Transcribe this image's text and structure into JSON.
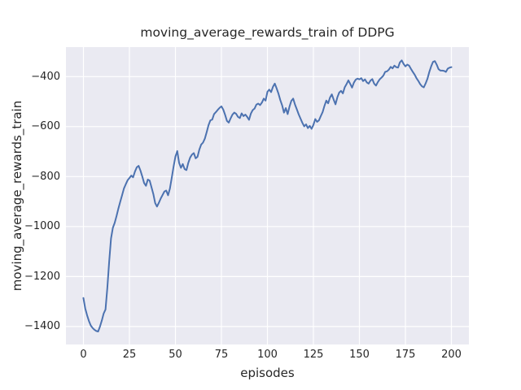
{
  "figure": {
    "title": "moving_average_rewards_train of DDPG",
    "xlabel": "episodes",
    "ylabel": "moving_average_rewards_train",
    "background_color": "#ffffff",
    "plot_background_color": "#eaeaf2",
    "grid_color": "#ffffff",
    "text_color": "#262626",
    "line_color": "#4c72b0"
  },
  "chart_data": {
    "type": "line",
    "title": "moving_average_rewards_train of DDPG",
    "xlabel": "episodes",
    "ylabel": "moving_average_rewards_train",
    "grid": true,
    "legend_position": "none",
    "x_ticks": [
      0,
      25,
      50,
      75,
      100,
      125,
      150,
      175,
      200
    ],
    "y_ticks": [
      -400,
      -600,
      -800,
      -1000,
      -1200,
      -1400
    ],
    "xlim": [
      -9.5,
      209.5
    ],
    "ylim": [
      -1472,
      -282
    ],
    "series": [
      {
        "name": "moving_average_rewards_train",
        "color": "#4c72b0",
        "x": [
          0,
          1,
          2,
          3,
          4,
          5,
          6,
          7,
          8,
          9,
          10,
          11,
          12,
          13,
          14,
          15,
          16,
          17,
          18,
          19,
          20,
          21,
          22,
          23,
          24,
          25,
          26,
          27,
          28,
          29,
          30,
          31,
          32,
          33,
          34,
          35,
          36,
          37,
          38,
          39,
          40,
          41,
          42,
          43,
          44,
          45,
          46,
          47,
          48,
          49,
          50,
          51,
          52,
          53,
          54,
          55,
          56,
          57,
          58,
          59,
          60,
          61,
          62,
          63,
          64,
          65,
          66,
          67,
          68,
          69,
          70,
          71,
          72,
          73,
          74,
          75,
          76,
          77,
          78,
          79,
          80,
          81,
          82,
          83,
          84,
          85,
          86,
          87,
          88,
          89,
          90,
          91,
          92,
          93,
          94,
          95,
          96,
          97,
          98,
          99,
          100,
          101,
          102,
          103,
          104,
          105,
          106,
          107,
          108,
          109,
          110,
          111,
          112,
          113,
          114,
          115,
          116,
          117,
          118,
          119,
          120,
          121,
          122,
          123,
          124,
          125,
          126,
          127,
          128,
          129,
          130,
          131,
          132,
          133,
          134,
          135,
          136,
          137,
          138,
          139,
          140,
          141,
          142,
          143,
          144,
          145,
          146,
          147,
          148,
          149,
          150,
          151,
          152,
          153,
          154,
          155,
          156,
          157,
          158,
          159,
          160,
          161,
          162,
          163,
          164,
          165,
          166,
          167,
          168,
          169,
          170,
          171,
          172,
          173,
          174,
          175,
          176,
          177,
          178,
          179,
          180,
          181,
          182,
          183,
          184,
          185,
          186,
          187,
          188,
          189,
          190,
          191,
          192,
          193,
          194,
          195,
          196,
          197,
          198,
          199,
          200
        ],
        "y": [
          -1286,
          -1328,
          -1355,
          -1378,
          -1396,
          -1406,
          -1413,
          -1418,
          -1420,
          -1400,
          -1376,
          -1348,
          -1332,
          -1245,
          -1140,
          -1048,
          -1005,
          -985,
          -958,
          -928,
          -901,
          -875,
          -848,
          -831,
          -815,
          -806,
          -796,
          -803,
          -780,
          -763,
          -757,
          -776,
          -800,
          -826,
          -837,
          -812,
          -816,
          -843,
          -870,
          -906,
          -920,
          -905,
          -888,
          -874,
          -860,
          -856,
          -875,
          -848,
          -805,
          -760,
          -720,
          -698,
          -745,
          -765,
          -750,
          -770,
          -774,
          -745,
          -724,
          -712,
          -706,
          -727,
          -721,
          -692,
          -672,
          -664,
          -648,
          -622,
          -594,
          -575,
          -572,
          -550,
          -542,
          -533,
          -525,
          -519,
          -532,
          -553,
          -577,
          -584,
          -567,
          -552,
          -544,
          -549,
          -561,
          -566,
          -547,
          -558,
          -552,
          -561,
          -573,
          -548,
          -534,
          -528,
          -512,
          -508,
          -514,
          -504,
          -488,
          -496,
          -461,
          -452,
          -462,
          -441,
          -428,
          -447,
          -468,
          -494,
          -515,
          -544,
          -526,
          -550,
          -520,
          -497,
          -488,
          -512,
          -531,
          -551,
          -568,
          -585,
          -599,
          -591,
          -606,
          -597,
          -609,
          -593,
          -570,
          -581,
          -575,
          -558,
          -542,
          -517,
          -496,
          -507,
          -484,
          -471,
          -492,
          -511,
          -483,
          -464,
          -457,
          -467,
          -443,
          -430,
          -415,
          -429,
          -444,
          -424,
          -412,
          -408,
          -411,
          -406,
          -418,
          -411,
          -423,
          -428,
          -416,
          -410,
          -428,
          -436,
          -422,
          -411,
          -404,
          -396,
          -381,
          -379,
          -372,
          -361,
          -367,
          -356,
          -362,
          -364,
          -343,
          -335,
          -349,
          -359,
          -352,
          -356,
          -369,
          -381,
          -392,
          -406,
          -417,
          -430,
          -439,
          -443,
          -427,
          -408,
          -381,
          -359,
          -341,
          -338,
          -352,
          -370,
          -376,
          -376,
          -377,
          -381,
          -368,
          -364,
          -362
        ]
      }
    ]
  }
}
